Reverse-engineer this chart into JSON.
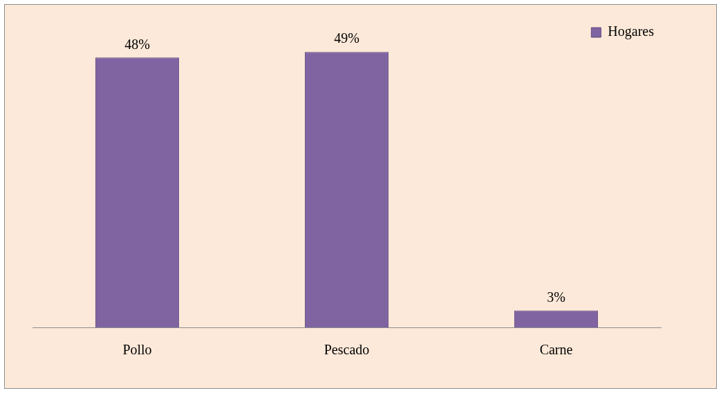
{
  "chart_data": {
    "type": "bar",
    "categories": [
      "Pollo",
      "Pescado",
      "Carne"
    ],
    "series": [
      {
        "name": "Hogares",
        "color": "#8064a2",
        "values": [
          48,
          49,
          3
        ],
        "value_labels": [
          "48%",
          "49%",
          "3%"
        ]
      }
    ],
    "legend": "top right",
    "grid": false
  }
}
